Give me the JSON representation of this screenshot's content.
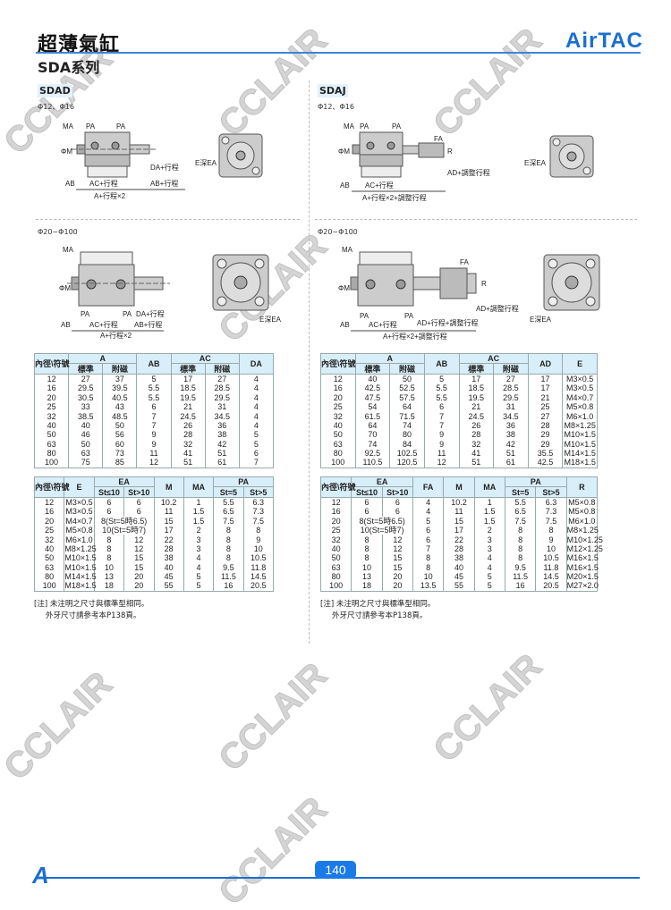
{
  "header": {
    "title": "超薄氣缸",
    "series": "SDA系列",
    "logo": "AirTAC"
  },
  "watermark": "CCLAIR",
  "colors": {
    "accent": "#1a6fd0",
    "table_header": "#d8eef9"
  },
  "sdad": {
    "tag": "SDAD",
    "small_range": "Φ12、Φ16",
    "large_range": "Φ20~Φ100",
    "labels": {
      "ma": "MA",
      "pa": "PA",
      "phim": "ΦM",
      "da": "DA+行程",
      "ab": "AB",
      "ac": "AC+行程",
      "ab_stroke": "AB+行程",
      "total": "A+行程×2",
      "e": "E深EA"
    },
    "table1": {
      "headers": [
        "內徑\\符號",
        "A",
        "AB",
        "AC",
        "DA"
      ],
      "sub": [
        "標準",
        "附磁",
        "標準",
        "附磁"
      ],
      "rows": [
        [
          "12",
          "27",
          "37",
          "5",
          "17",
          "27",
          "4"
        ],
        [
          "16",
          "29.5",
          "39.5",
          "5.5",
          "18.5",
          "28.5",
          "4"
        ],
        [
          "20",
          "30.5",
          "40.5",
          "5.5",
          "19.5",
          "29.5",
          "4"
        ],
        [
          "25",
          "33",
          "43",
          "6",
          "21",
          "31",
          "4"
        ],
        [
          "32",
          "38.5",
          "48.5",
          "7",
          "24.5",
          "34.5",
          "4"
        ],
        [
          "40",
          "40",
          "50",
          "7",
          "26",
          "36",
          "4"
        ],
        [
          "50",
          "46",
          "56",
          "9",
          "28",
          "38",
          "5"
        ],
        [
          "63",
          "50",
          "60",
          "9",
          "32",
          "42",
          "5"
        ],
        [
          "80",
          "63",
          "73",
          "11",
          "41",
          "51",
          "6"
        ],
        [
          "100",
          "75",
          "85",
          "12",
          "51",
          "61",
          "7"
        ]
      ]
    },
    "table2": {
      "headers": [
        "內徑\\符號",
        "E",
        "EA",
        "M",
        "MA",
        "PA"
      ],
      "sub": [
        "St≤10",
        "St>10",
        "St=5",
        "St>5"
      ],
      "rows": [
        [
          "12",
          "M3×0.5",
          "6",
          "6",
          "10.2",
          "1",
          "5.5",
          "6.3"
        ],
        [
          "16",
          "M3×0.5",
          "6",
          "6",
          "11",
          "1.5",
          "6.5",
          "7.3"
        ],
        [
          "20",
          "M4×0.7",
          "8(St=5時6.5)",
          null,
          "15",
          "1.5",
          "7.5",
          "7.5"
        ],
        [
          "25",
          "M5×0.8",
          "10(St=5時7)",
          null,
          "17",
          "2",
          "8",
          "8"
        ],
        [
          "32",
          "M6×1.0",
          "8",
          "12",
          "22",
          "3",
          "8",
          "9"
        ],
        [
          "40",
          "M8×1.25",
          "8",
          "12",
          "28",
          "3",
          "8",
          "10"
        ],
        [
          "50",
          "M10×1.5",
          "8",
          "15",
          "38",
          "4",
          "8",
          "10.5"
        ],
        [
          "63",
          "M10×1.5",
          "10",
          "15",
          "40",
          "4",
          "9.5",
          "11.8"
        ],
        [
          "80",
          "M14×1.5",
          "13",
          "20",
          "45",
          "5",
          "11.5",
          "14.5"
        ],
        [
          "100",
          "M18×1.5",
          "18",
          "20",
          "55",
          "5",
          "16",
          "20.5"
        ]
      ]
    },
    "notes": [
      "[注] 未注明之尺寸與標準型相同。",
      "外牙尺寸請參考本P138頁。"
    ]
  },
  "sdaj": {
    "tag": "SDAJ",
    "small_range": "Φ12、Φ16",
    "large_range": "Φ20~Φ100",
    "labels": {
      "ma": "MA",
      "pa": "PA",
      "phim": "ΦM",
      "fa": "FA",
      "r": "R",
      "ad": "AD+調整行程",
      "ab": "AB",
      "ac": "AC+行程",
      "ad_stroke": "AD+行程+調整行程",
      "total": "A+行程×2+調整行程",
      "e": "E深EA"
    },
    "table1": {
      "headers": [
        "內徑\\符號",
        "A",
        "AB",
        "AC",
        "AD",
        "E"
      ],
      "sub": [
        "標準",
        "附磁",
        "標準",
        "附磁"
      ],
      "rows": [
        [
          "12",
          "40",
          "50",
          "5",
          "17",
          "27",
          "17",
          "M3×0.5"
        ],
        [
          "16",
          "42.5",
          "52.5",
          "5.5",
          "18.5",
          "28.5",
          "17",
          "M3×0.5"
        ],
        [
          "20",
          "47.5",
          "57.5",
          "5.5",
          "19.5",
          "29.5",
          "21",
          "M4×0.7"
        ],
        [
          "25",
          "54",
          "64",
          "6",
          "21",
          "31",
          "25",
          "M5×0.8"
        ],
        [
          "32",
          "61.5",
          "71.5",
          "7",
          "24.5",
          "34.5",
          "27",
          "M6×1.0"
        ],
        [
          "40",
          "64",
          "74",
          "7",
          "26",
          "36",
          "28",
          "M8×1.25"
        ],
        [
          "50",
          "70",
          "80",
          "9",
          "28",
          "38",
          "29",
          "M10×1.5"
        ],
        [
          "63",
          "74",
          "84",
          "9",
          "32",
          "42",
          "29",
          "M10×1.5"
        ],
        [
          "80",
          "92.5",
          "102.5",
          "11",
          "41",
          "51",
          "35.5",
          "M14×1.5"
        ],
        [
          "100",
          "110.5",
          "120.5",
          "12",
          "51",
          "61",
          "42.5",
          "M18×1.5"
        ]
      ]
    },
    "table2": {
      "headers": [
        "內徑\\符號",
        "EA",
        "FA",
        "M",
        "MA",
        "PA",
        "R"
      ],
      "sub": [
        "St≤10",
        "St>10",
        "St=5",
        "St>5"
      ],
      "rows": [
        [
          "12",
          "6",
          "6",
          "4",
          "10.2",
          "1",
          "5.5",
          "6.3",
          "M5×0.8"
        ],
        [
          "16",
          "6",
          "6",
          "4",
          "11",
          "1.5",
          "6.5",
          "7.3",
          "M5×0.8"
        ],
        [
          "20",
          "8(St=5時6.5)",
          null,
          "5",
          "15",
          "1.5",
          "7.5",
          "7.5",
          "M6×1.0"
        ],
        [
          "25",
          "10(St=5時7)",
          null,
          "6",
          "17",
          "2",
          "8",
          "8",
          "M8×1.25"
        ],
        [
          "32",
          "8",
          "12",
          "6",
          "22",
          "3",
          "8",
          "9",
          "M10×1.25"
        ],
        [
          "40",
          "8",
          "12",
          "7",
          "28",
          "3",
          "8",
          "10",
          "M12×1.25"
        ],
        [
          "50",
          "8",
          "15",
          "8",
          "38",
          "4",
          "8",
          "10.5",
          "M16×1.5"
        ],
        [
          "63",
          "10",
          "15",
          "8",
          "40",
          "4",
          "9.5",
          "11.8",
          "M16×1.5"
        ],
        [
          "80",
          "13",
          "20",
          "10",
          "45",
          "5",
          "11.5",
          "14.5",
          "M20×1.5"
        ],
        [
          "100",
          "18",
          "20",
          "13.5",
          "55",
          "5",
          "16",
          "20.5",
          "M27×2.0"
        ]
      ]
    },
    "notes": [
      "[注] 未注明之尺寸與標準型相同。",
      "外牙尺寸請參考本P138頁。"
    ]
  },
  "footer": {
    "page": "140",
    "logo": "A"
  }
}
